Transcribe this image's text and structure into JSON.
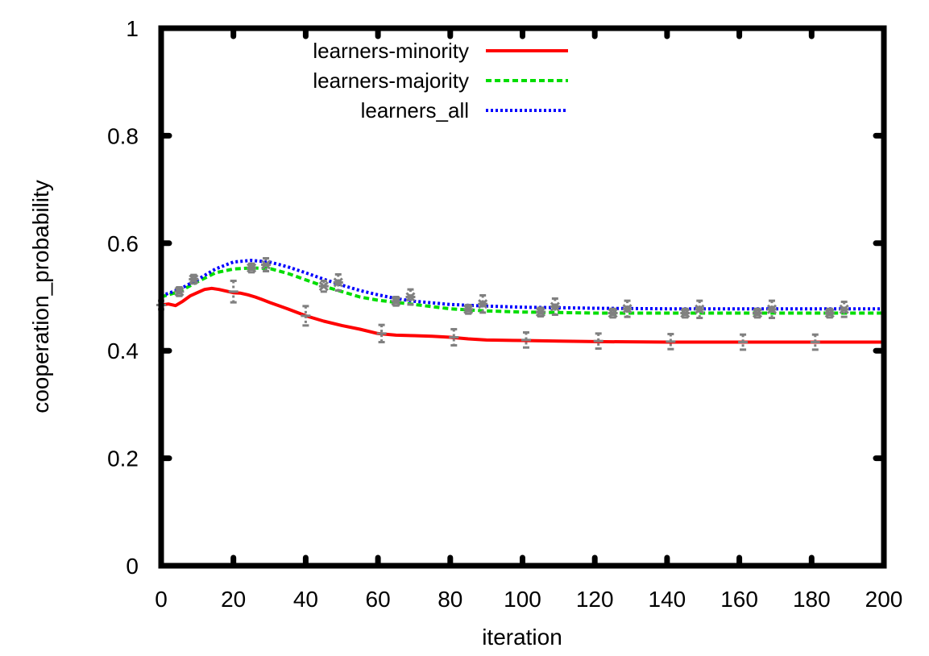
{
  "chart_data": {
    "type": "line",
    "title": "",
    "xlabel": "iteration",
    "ylabel": "cooperation_probability",
    "xlim": [
      0,
      200
    ],
    "ylim": [
      0,
      1
    ],
    "xticks": [
      0,
      20,
      40,
      60,
      80,
      100,
      120,
      140,
      160,
      180,
      200
    ],
    "yticks": [
      0,
      0.2,
      0.4,
      0.6,
      0.8,
      1
    ],
    "xtick_labels": [
      "0",
      "20",
      "40",
      "60",
      "80",
      "100",
      "120",
      "140",
      "160",
      "180",
      "200"
    ],
    "ytick_labels": [
      "0",
      "0.2",
      "0.4",
      "0.6",
      "0.8",
      "1"
    ],
    "grid": false,
    "legend_position": "top-center",
    "series": [
      {
        "name": "learners-minority",
        "color": "#ff0000",
        "dash": "solid",
        "x": [
          0,
          2,
          4,
          6,
          8,
          10,
          12,
          14,
          16,
          18,
          20,
          22,
          24,
          26,
          28,
          30,
          35,
          40,
          45,
          50,
          55,
          60,
          65,
          70,
          75,
          80,
          85,
          90,
          100,
          110,
          120,
          140,
          160,
          180,
          200
        ],
        "y": [
          0.485,
          0.487,
          0.484,
          0.492,
          0.502,
          0.508,
          0.514,
          0.516,
          0.514,
          0.511,
          0.508,
          0.507,
          0.504,
          0.5,
          0.495,
          0.49,
          0.478,
          0.465,
          0.455,
          0.447,
          0.44,
          0.432,
          0.429,
          0.428,
          0.427,
          0.425,
          0.422,
          0.42,
          0.419,
          0.418,
          0.417,
          0.416,
          0.416,
          0.416,
          0.416
        ],
        "errorbars": {
          "x": [
            0,
            20,
            40,
            61,
            81,
            101,
            121,
            141,
            161,
            181
          ],
          "y": [
            0.485,
            0.51,
            0.465,
            0.432,
            0.425,
            0.42,
            0.418,
            0.417,
            0.416,
            0.416
          ],
          "err": [
            0.008,
            0.02,
            0.018,
            0.016,
            0.015,
            0.014,
            0.014,
            0.014,
            0.014,
            0.014
          ]
        }
      },
      {
        "name": "learners-majority",
        "color": "#00dd00",
        "dash": "dashed",
        "x": [
          0,
          5,
          10,
          15,
          20,
          25,
          30,
          35,
          40,
          45,
          50,
          55,
          60,
          65,
          70,
          80,
          90,
          100,
          110,
          120,
          140,
          160,
          180,
          200
        ],
        "y": [
          0.5,
          0.51,
          0.528,
          0.545,
          0.552,
          0.554,
          0.553,
          0.544,
          0.532,
          0.52,
          0.51,
          0.5,
          0.494,
          0.49,
          0.486,
          0.478,
          0.474,
          0.472,
          0.471,
          0.47,
          0.47,
          0.47,
          0.47,
          0.47
        ],
        "errorbars": {
          "x": [
            5,
            9,
            25,
            29,
            45,
            49,
            65,
            69,
            85,
            89,
            105,
            109,
            125,
            129,
            145,
            149,
            165,
            169,
            185,
            189
          ],
          "y": [
            0.51,
            0.533,
            0.554,
            0.56,
            0.52,
            0.527,
            0.492,
            0.5,
            0.477,
            0.487,
            0.472,
            0.482,
            0.47,
            0.478,
            0.47,
            0.477,
            0.47,
            0.477,
            0.47,
            0.477
          ],
          "err": [
            0.008,
            0.008,
            0.008,
            0.012,
            0.01,
            0.015,
            0.008,
            0.014,
            0.008,
            0.016,
            0.008,
            0.015,
            0.008,
            0.015,
            0.008,
            0.016,
            0.008,
            0.016,
            0.008,
            0.014
          ]
        }
      },
      {
        "name": "learners_all",
        "color": "#0000ff",
        "dash": "dotted",
        "x": [
          0,
          5,
          10,
          15,
          20,
          25,
          30,
          35,
          40,
          45,
          50,
          55,
          60,
          65,
          70,
          80,
          90,
          100,
          110,
          120,
          140,
          160,
          180,
          200
        ],
        "y": [
          0.502,
          0.514,
          0.532,
          0.552,
          0.565,
          0.568,
          0.565,
          0.556,
          0.545,
          0.533,
          0.522,
          0.512,
          0.504,
          0.497,
          0.492,
          0.486,
          0.483,
          0.481,
          0.48,
          0.479,
          0.478,
          0.478,
          0.478,
          0.478
        ]
      }
    ]
  }
}
